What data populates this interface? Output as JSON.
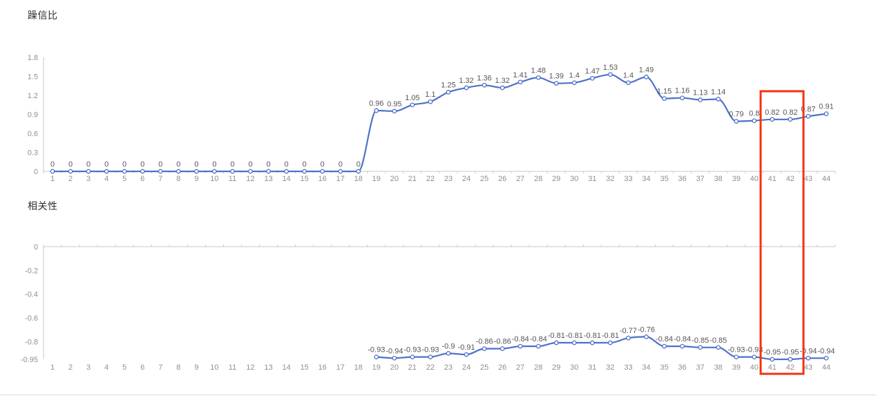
{
  "chart_data": [
    {
      "type": "line",
      "title": "躁信比",
      "x": [
        1,
        2,
        3,
        4,
        5,
        6,
        7,
        8,
        9,
        10,
        11,
        12,
        13,
        14,
        15,
        16,
        17,
        18,
        19,
        20,
        21,
        22,
        23,
        24,
        25,
        26,
        27,
        28,
        29,
        30,
        31,
        32,
        33,
        34,
        35,
        36,
        37,
        38,
        39,
        40,
        41,
        42,
        43,
        44
      ],
      "values": [
        0,
        0,
        0,
        0,
        0,
        0,
        0,
        0,
        0,
        0,
        0,
        0,
        0,
        0,
        0,
        0,
        0,
        0,
        0.96,
        0.95,
        1.05,
        1.1,
        1.25,
        1.32,
        1.36,
        1.32,
        1.41,
        1.48,
        1.39,
        1.4,
        1.47,
        1.53,
        1.4,
        1.49,
        1.15,
        1.16,
        1.13,
        1.14,
        0.79,
        0.8,
        0.82,
        0.82,
        0.87,
        0.91
      ],
      "ylim": [
        0,
        1.8
      ],
      "yticks": [
        1.8,
        1.5,
        1.2,
        0.9,
        0.6,
        0.3,
        0
      ],
      "xlabel": "",
      "ylabel": "",
      "smooth": true,
      "data_labels": true,
      "grid": false,
      "legend": "none"
    },
    {
      "type": "line",
      "title": "相关性",
      "x": [
        1,
        2,
        3,
        4,
        5,
        6,
        7,
        8,
        9,
        10,
        11,
        12,
        13,
        14,
        15,
        16,
        17,
        18,
        19,
        20,
        21,
        22,
        23,
        24,
        25,
        26,
        27,
        28,
        29,
        30,
        31,
        32,
        33,
        34,
        35,
        36,
        37,
        38,
        39,
        40,
        41,
        42,
        43,
        44
      ],
      "values": [
        null,
        null,
        null,
        null,
        null,
        null,
        null,
        null,
        null,
        null,
        null,
        null,
        null,
        null,
        null,
        null,
        null,
        null,
        -0.93,
        -0.94,
        -0.93,
        -0.93,
        -0.9,
        -0.91,
        -0.86,
        -0.86,
        -0.84,
        -0.84,
        -0.81,
        -0.81,
        -0.81,
        -0.81,
        -0.77,
        -0.76,
        -0.84,
        -0.84,
        -0.85,
        -0.85,
        -0.93,
        -0.93,
        -0.95,
        -0.95,
        -0.94,
        -0.94
      ],
      "ylim": [
        -0.95,
        0
      ],
      "yticks": [
        0,
        -0.2,
        -0.4,
        -0.6,
        -0.8,
        -0.95
      ],
      "xlabel": "",
      "ylabel": "",
      "smooth": true,
      "data_labels": true,
      "grid": false,
      "legend": "none"
    }
  ],
  "annotation": {
    "highlight_x_start": 41,
    "highlight_x_end": 42
  },
  "colors": {
    "line": "#4B71C9",
    "marker_fill": "#FFFFFF",
    "data_label": "#555555",
    "axis_line": "#C9C9C9",
    "axis_text": "#8F8F8F",
    "highlight": "#F4320C",
    "divider": "#E3E3E3",
    "title": "#2E2E2E"
  }
}
